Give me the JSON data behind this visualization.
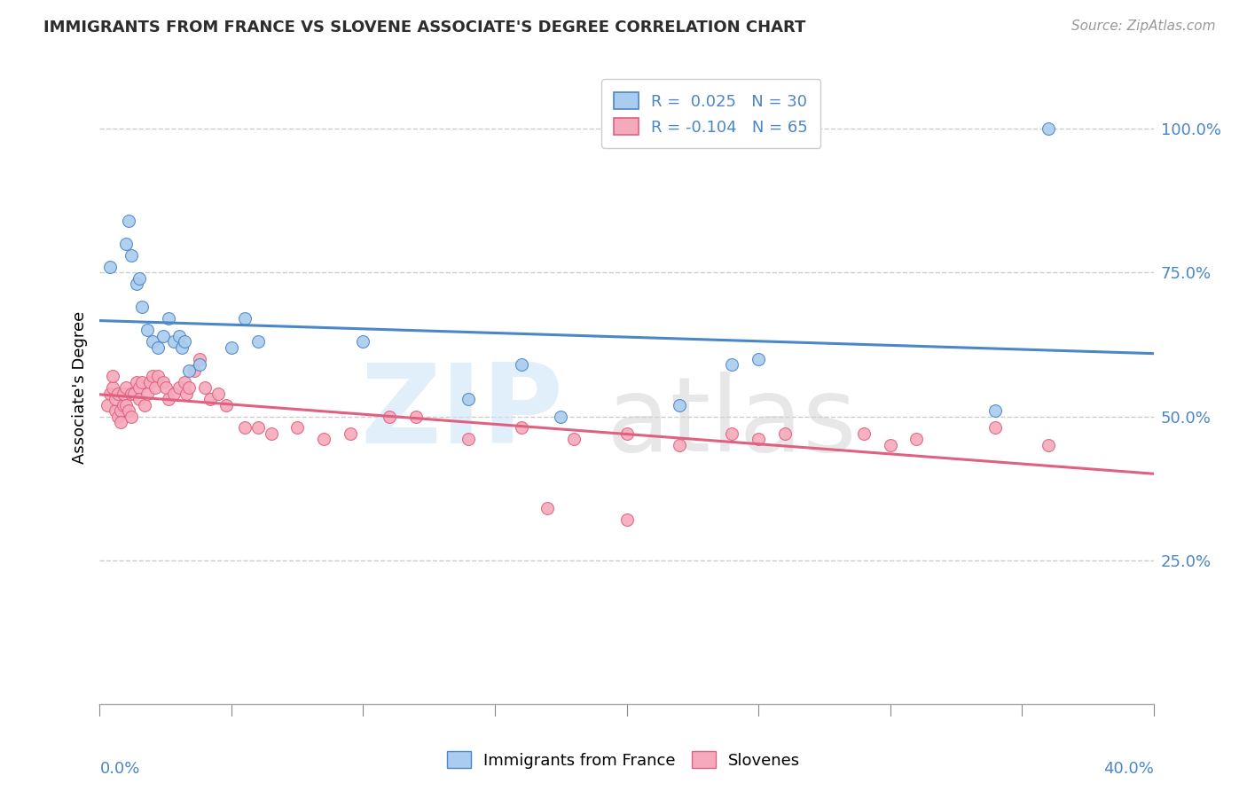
{
  "title": "IMMIGRANTS FROM FRANCE VS SLOVENE ASSOCIATE'S DEGREE CORRELATION CHART",
  "source": "Source: ZipAtlas.com",
  "ylabel": "Associate's Degree",
  "legend_label1": "Immigrants from France",
  "legend_label2": "Slovenes",
  "legend_r1": "0.025",
  "legend_n1": "30",
  "legend_r2": "-0.104",
  "legend_n2": "65",
  "ytick_labels": [
    "25.0%",
    "50.0%",
    "75.0%",
    "100.0%"
  ],
  "ytick_values": [
    0.25,
    0.5,
    0.75,
    1.0
  ],
  "xlim": [
    0.0,
    0.4
  ],
  "ylim": [
    0.0,
    1.1
  ],
  "xtick_left": "0.0%",
  "xtick_right": "40.0%",
  "color_france_fill": "#aaccee",
  "color_france_edge": "#4a86c8",
  "color_slovene_fill": "#f5aabb",
  "color_slovene_edge": "#e06080",
  "color_blue": "#4a86c8",
  "france_x": [
    0.004,
    0.01,
    0.011,
    0.012,
    0.014,
    0.015,
    0.016,
    0.018,
    0.02,
    0.022,
    0.024,
    0.026,
    0.028,
    0.03,
    0.031,
    0.032,
    0.034,
    0.038,
    0.05,
    0.055,
    0.06,
    0.1,
    0.14,
    0.16,
    0.175,
    0.22,
    0.24,
    0.25,
    0.34,
    0.36
  ],
  "france_y": [
    0.76,
    0.8,
    0.84,
    0.78,
    0.73,
    0.74,
    0.69,
    0.65,
    0.63,
    0.62,
    0.64,
    0.67,
    0.63,
    0.64,
    0.62,
    0.63,
    0.58,
    0.59,
    0.62,
    0.67,
    0.63,
    0.63,
    0.53,
    0.59,
    0.5,
    0.52,
    0.59,
    0.6,
    0.51,
    1.0
  ],
  "slovene_x": [
    0.003,
    0.004,
    0.005,
    0.005,
    0.006,
    0.006,
    0.007,
    0.007,
    0.008,
    0.008,
    0.009,
    0.009,
    0.01,
    0.01,
    0.011,
    0.012,
    0.012,
    0.013,
    0.014,
    0.015,
    0.015,
    0.016,
    0.017,
    0.018,
    0.019,
    0.02,
    0.021,
    0.022,
    0.024,
    0.025,
    0.026,
    0.028,
    0.03,
    0.032,
    0.033,
    0.034,
    0.036,
    0.038,
    0.04,
    0.042,
    0.045,
    0.048,
    0.055,
    0.06,
    0.065,
    0.075,
    0.085,
    0.095,
    0.11,
    0.12,
    0.14,
    0.16,
    0.18,
    0.2,
    0.22,
    0.24,
    0.25,
    0.26,
    0.29,
    0.31,
    0.17,
    0.2,
    0.3,
    0.34,
    0.36
  ],
  "slovene_y": [
    0.52,
    0.54,
    0.55,
    0.57,
    0.51,
    0.53,
    0.5,
    0.54,
    0.51,
    0.49,
    0.52,
    0.54,
    0.52,
    0.55,
    0.51,
    0.54,
    0.5,
    0.54,
    0.56,
    0.55,
    0.53,
    0.56,
    0.52,
    0.54,
    0.56,
    0.57,
    0.55,
    0.57,
    0.56,
    0.55,
    0.53,
    0.54,
    0.55,
    0.56,
    0.54,
    0.55,
    0.58,
    0.6,
    0.55,
    0.53,
    0.54,
    0.52,
    0.48,
    0.48,
    0.47,
    0.48,
    0.46,
    0.47,
    0.5,
    0.5,
    0.46,
    0.48,
    0.46,
    0.47,
    0.45,
    0.47,
    0.46,
    0.47,
    0.47,
    0.46,
    0.34,
    0.32,
    0.45,
    0.48,
    0.45
  ]
}
